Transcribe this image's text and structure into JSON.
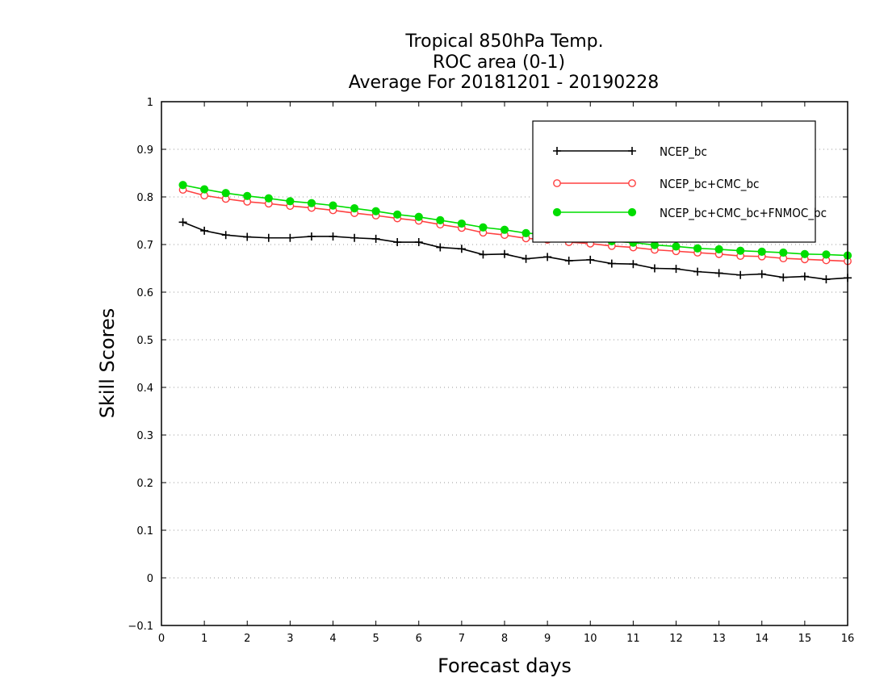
{
  "chart_data": {
    "type": "line",
    "title_lines": [
      "Tropical 850hPa Temp.",
      "ROC area (0-1)",
      "Average For 20181201 - 20190228"
    ],
    "xlabel": "Forecast days",
    "ylabel": "Skill Scores",
    "xlim": [
      0,
      16
    ],
    "ylim": [
      -0.1,
      1
    ],
    "x_ticks": [
      "0",
      "1",
      "2",
      "3",
      "4",
      "5",
      "6",
      "7",
      "8",
      "9",
      "10",
      "11",
      "12",
      "13",
      "14",
      "15",
      "16"
    ],
    "y_ticks": [
      "−0.1",
      "0",
      "0.1",
      "0.2",
      "0.3",
      "0.4",
      "0.5",
      "0.6",
      "0.7",
      "0.8",
      "0.9",
      "1"
    ],
    "grid": "horizontal dotted",
    "legend_position": "top-right",
    "x": [
      0.5,
      1,
      1.5,
      2,
      2.5,
      3,
      3.5,
      4,
      4.5,
      5,
      5.5,
      6,
      6.5,
      7,
      7.5,
      8,
      8.5,
      9,
      9.5,
      10,
      10.5,
      11,
      11.5,
      12,
      12.5,
      13,
      13.5,
      14,
      14.5,
      15,
      15.5,
      16
    ],
    "series": [
      {
        "name": "NCEP_bc",
        "color": "#000000",
        "marker": "plus",
        "values": [
          0.747,
          0.729,
          0.72,
          0.716,
          0.714,
          0.714,
          0.717,
          0.717,
          0.714,
          0.712,
          0.705,
          0.705,
          0.694,
          0.691,
          0.679,
          0.68,
          0.67,
          0.674,
          0.666,
          0.668,
          0.66,
          0.659,
          0.65,
          0.649,
          0.643,
          0.64,
          0.636,
          0.638,
          0.631,
          0.633,
          0.627,
          0.63
        ]
      },
      {
        "name": "NCEP_bc+CMC_bc",
        "color": "#ff4040",
        "marker": "open-circle",
        "values": [
          0.815,
          0.803,
          0.796,
          0.79,
          0.786,
          0.781,
          0.777,
          0.772,
          0.766,
          0.761,
          0.755,
          0.75,
          0.742,
          0.735,
          0.725,
          0.72,
          0.713,
          0.71,
          0.705,
          0.702,
          0.697,
          0.694,
          0.689,
          0.686,
          0.683,
          0.68,
          0.676,
          0.675,
          0.671,
          0.669,
          0.667,
          0.665
        ]
      },
      {
        "name": "NCEP_bc+CMC_bc+FNMOC_bc",
        "color": "#00dd00",
        "marker": "filled-circle",
        "values": [
          0.825,
          0.816,
          0.808,
          0.802,
          0.797,
          0.791,
          0.787,
          0.782,
          0.776,
          0.77,
          0.763,
          0.758,
          0.751,
          0.744,
          0.736,
          0.731,
          0.724,
          0.721,
          0.716,
          0.713,
          0.707,
          0.704,
          0.699,
          0.696,
          0.692,
          0.69,
          0.687,
          0.685,
          0.683,
          0.68,
          0.679,
          0.677
        ]
      }
    ]
  }
}
